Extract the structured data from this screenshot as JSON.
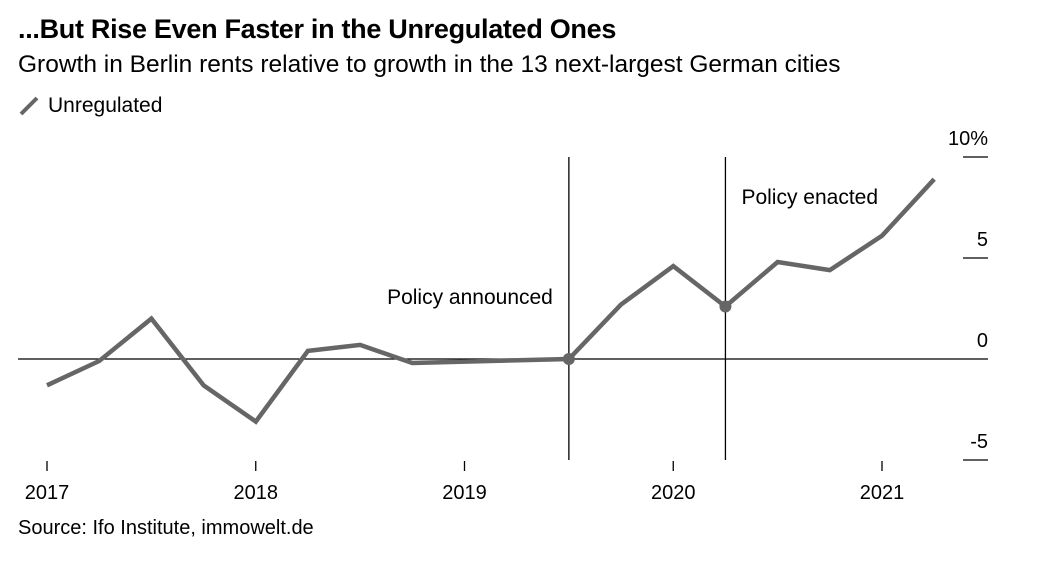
{
  "header": {
    "title": "...But Rise Even Faster in the Unregulated Ones",
    "subtitle": "Growth in Berlin rents relative to growth in the 13 next-largest German cities"
  },
  "legend": {
    "label": "Unregulated",
    "color": "#666666"
  },
  "source": "Source: Ifo Institute, immowelt.de",
  "chart_data": {
    "type": "line",
    "title": "...But Rise Even Faster in the Unregulated Ones",
    "subtitle": "Growth in Berlin rents relative to growth in the 13 next-largest German cities",
    "x_unit": "year",
    "xlim": [
      2017,
      2021.35
    ],
    "ylim": [
      -5,
      10
    ],
    "y_ticks": [
      {
        "value": 10,
        "label": "10%"
      },
      {
        "value": 5,
        "label": "5"
      },
      {
        "value": 0,
        "label": "0"
      },
      {
        "value": -5,
        "label": "-5"
      }
    ],
    "x_ticks": [
      {
        "value": 2017,
        "label": "2017"
      },
      {
        "value": 2018,
        "label": "2018"
      },
      {
        "value": 2019,
        "label": "2019"
      },
      {
        "value": 2020,
        "label": "2020"
      },
      {
        "value": 2021,
        "label": "2021"
      }
    ],
    "grid": false,
    "legend_position": "top-left",
    "series": [
      {
        "name": "Unregulated",
        "color": "#666666",
        "points": [
          {
            "x": 2017.0,
            "y": -1.3
          },
          {
            "x": 2017.25,
            "y": -0.1
          },
          {
            "x": 2017.5,
            "y": 2.0
          },
          {
            "x": 2017.75,
            "y": -1.3
          },
          {
            "x": 2018.0,
            "y": -3.1
          },
          {
            "x": 2018.25,
            "y": 0.4
          },
          {
            "x": 2018.5,
            "y": 0.7
          },
          {
            "x": 2018.75,
            "y": -0.2
          },
          {
            "x": 2019.5,
            "y": 0.0
          },
          {
            "x": 2019.75,
            "y": 2.7
          },
          {
            "x": 2020.0,
            "y": 4.6
          },
          {
            "x": 2020.25,
            "y": 2.6
          },
          {
            "x": 2020.5,
            "y": 4.8
          },
          {
            "x": 2020.75,
            "y": 4.4
          },
          {
            "x": 2021.0,
            "y": 6.1
          },
          {
            "x": 2021.25,
            "y": 8.9
          }
        ]
      }
    ],
    "annotations": [
      {
        "x": 2019.5,
        "y": 0.0,
        "label": "Policy announced",
        "label_side": "left"
      },
      {
        "x": 2020.25,
        "y": 2.6,
        "label": "Policy enacted",
        "label_side": "right"
      }
    ]
  }
}
